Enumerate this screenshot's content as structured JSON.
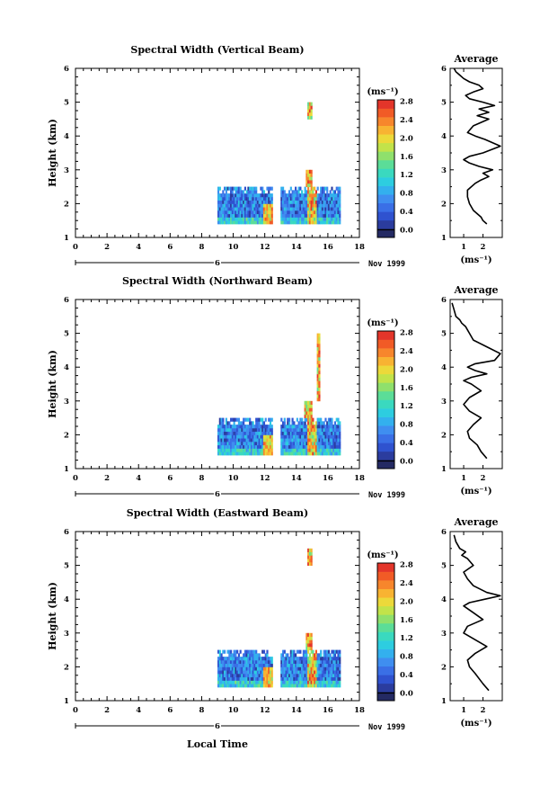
{
  "chart_data": [
    {
      "type": "heatmap",
      "title": "Spectral Width (Vertical Beam)",
      "xlabel": "",
      "ylabel": "Height (km)",
      "xlim": [
        0,
        18
      ],
      "ylim": [
        1,
        6
      ],
      "xticks": [
        "0",
        "2",
        "4",
        "6",
        "8",
        "10",
        "12",
        "14",
        "16",
        "18"
      ],
      "yticks": [
        "1",
        "2",
        "3",
        "4",
        "5",
        "6"
      ],
      "day_marker": "6",
      "date_label": "Nov 1999",
      "colorbar": {
        "unit": "(ms⁻¹)",
        "ticks": [
          "0.0",
          "0.4",
          "0.8",
          "1.2",
          "1.6",
          "2.0",
          "2.4",
          "2.8"
        ],
        "range": [
          0,
          3.0
        ]
      },
      "data_blocks": [
        {
          "x": [
            9,
            12.5
          ],
          "y": [
            1.4,
            2.5
          ]
        },
        {
          "x": [
            13,
            16.8
          ],
          "y": [
            1.4,
            2.5
          ]
        },
        {
          "x": [
            14.6,
            15.0
          ],
          "y": [
            2.5,
            3.0
          ]
        },
        {
          "x": [
            14.7,
            15.0
          ],
          "y": [
            4.5,
            5.0
          ]
        }
      ],
      "profile": {
        "title": "Average",
        "xlabel": "(ms⁻¹)",
        "xticks": [
          "1",
          "2"
        ],
        "yticks": [
          "1",
          "2",
          "3",
          "4",
          "5",
          "6"
        ],
        "xlim": [
          0.3,
          3.0
        ],
        "ylim": [
          1,
          6
        ],
        "x": [
          2.2,
          2.0,
          1.9,
          1.5,
          1.3,
          1.2,
          1.2,
          1.6,
          1.9,
          2.3,
          2.0,
          2.5,
          1.8,
          1.3,
          1.0,
          1.3,
          2.0,
          2.9,
          2.1,
          1.6,
          1.2,
          1.5,
          2.3,
          1.7,
          2.3,
          1.8,
          2.6,
          2.0,
          1.3,
          1.1,
          1.5,
          2.0,
          1.8,
          1.3,
          1.0,
          0.8,
          0.6,
          0.5
        ],
        "y": [
          1.4,
          1.5,
          1.6,
          1.8,
          2.0,
          2.2,
          2.4,
          2.6,
          2.7,
          2.8,
          2.9,
          3.0,
          3.1,
          3.2,
          3.3,
          3.4,
          3.5,
          3.7,
          3.9,
          4.0,
          4.1,
          4.3,
          4.5,
          4.6,
          4.7,
          4.8,
          4.9,
          5.0,
          5.1,
          5.2,
          5.3,
          5.4,
          5.5,
          5.6,
          5.7,
          5.8,
          5.9,
          6.0
        ]
      }
    },
    {
      "type": "heatmap",
      "title": "Spectral Width (Northward Beam)",
      "xlabel": "",
      "ylabel": "Height (km)",
      "xlim": [
        0,
        18
      ],
      "ylim": [
        1,
        6
      ],
      "xticks": [
        "0",
        "2",
        "4",
        "6",
        "8",
        "10",
        "12",
        "14",
        "16",
        "18"
      ],
      "yticks": [
        "1",
        "2",
        "3",
        "4",
        "5",
        "6"
      ],
      "day_marker": "6",
      "date_label": "Nov 1999",
      "colorbar": {
        "unit": "(ms⁻¹)",
        "ticks": [
          "0.0",
          "0.4",
          "0.8",
          "1.2",
          "1.6",
          "2.0",
          "2.4",
          "2.8"
        ],
        "range": [
          0,
          3.0
        ]
      },
      "data_blocks": [
        {
          "x": [
            9,
            12.5
          ],
          "y": [
            1.4,
            2.5
          ]
        },
        {
          "x": [
            13,
            16.8
          ],
          "y": [
            1.4,
            2.5
          ]
        },
        {
          "x": [
            14.5,
            15.0
          ],
          "y": [
            2.5,
            3.0
          ]
        },
        {
          "x": [
            15.3,
            15.5
          ],
          "y": [
            3.0,
            5.0
          ]
        }
      ],
      "profile": {
        "title": "Average",
        "xlabel": "(ms⁻¹)",
        "xticks": [
          "1",
          "2"
        ],
        "yticks": [
          "1",
          "2",
          "3",
          "4",
          "5",
          "6"
        ],
        "xlim": [
          0.3,
          3.0
        ],
        "ylim": [
          1,
          6
        ],
        "x": [
          2.2,
          1.9,
          1.7,
          1.3,
          1.2,
          1.5,
          1.9,
          1.3,
          1.0,
          1.3,
          1.9,
          1.4,
          1.0,
          1.4,
          2.2,
          1.6,
          1.2,
          1.6,
          2.6,
          2.9,
          2.2,
          1.5,
          1.3,
          1.2,
          1.1,
          0.9,
          0.8,
          0.6,
          0.5,
          0.4
        ],
        "y": [
          1.3,
          1.5,
          1.7,
          1.9,
          2.1,
          2.3,
          2.5,
          2.7,
          2.9,
          3.1,
          3.3,
          3.5,
          3.6,
          3.7,
          3.8,
          3.9,
          4.0,
          4.1,
          4.2,
          4.4,
          4.6,
          4.8,
          5.0,
          5.1,
          5.2,
          5.3,
          5.4,
          5.5,
          5.7,
          5.9
        ]
      }
    },
    {
      "type": "heatmap",
      "title": "Spectral Width (Eastward Beam)",
      "xlabel": "Local Time",
      "ylabel": "Height (km)",
      "xlim": [
        0,
        18
      ],
      "ylim": [
        1,
        6
      ],
      "xticks": [
        "0",
        "2",
        "4",
        "6",
        "8",
        "10",
        "12",
        "14",
        "16",
        "18"
      ],
      "yticks": [
        "1",
        "2",
        "3",
        "4",
        "5",
        "6"
      ],
      "day_marker": "6",
      "date_label": "Nov 1999",
      "colorbar": {
        "unit": "(ms⁻¹)",
        "ticks": [
          "0.0",
          "0.4",
          "0.8",
          "1.2",
          "1.6",
          "2.0",
          "2.4",
          "2.8"
        ],
        "range": [
          0,
          3.0
        ]
      },
      "data_blocks": [
        {
          "x": [
            9,
            12.5
          ],
          "y": [
            1.4,
            2.5
          ]
        },
        {
          "x": [
            13,
            16.8
          ],
          "y": [
            1.4,
            2.5
          ]
        },
        {
          "x": [
            14.6,
            15.0
          ],
          "y": [
            2.5,
            3.0
          ]
        },
        {
          "x": [
            14.7,
            15.0
          ],
          "y": [
            5.0,
            5.5
          ]
        }
      ],
      "profile": {
        "title": "Average",
        "xlabel": "(ms⁻¹)",
        "xticks": [
          "1",
          "2"
        ],
        "yticks": [
          "1",
          "2",
          "3",
          "4",
          "5",
          "6"
        ],
        "xlim": [
          0.3,
          3.0
        ],
        "ylim": [
          1,
          6
        ],
        "x": [
          2.3,
          2.0,
          1.6,
          1.3,
          1.2,
          1.6,
          2.2,
          1.6,
          1.0,
          1.2,
          2.0,
          1.5,
          1.0,
          1.3,
          2.1,
          2.9,
          2.2,
          1.5,
          1.2,
          1.0,
          1.5,
          1.2,
          0.9,
          1.1,
          0.8,
          0.6,
          0.5
        ],
        "y": [
          1.3,
          1.5,
          1.8,
          2.0,
          2.2,
          2.4,
          2.6,
          2.8,
          3.0,
          3.2,
          3.4,
          3.6,
          3.8,
          3.9,
          4.0,
          4.1,
          4.2,
          4.4,
          4.6,
          4.8,
          5.0,
          5.2,
          5.3,
          5.4,
          5.5,
          5.7,
          5.9
        ]
      }
    }
  ]
}
